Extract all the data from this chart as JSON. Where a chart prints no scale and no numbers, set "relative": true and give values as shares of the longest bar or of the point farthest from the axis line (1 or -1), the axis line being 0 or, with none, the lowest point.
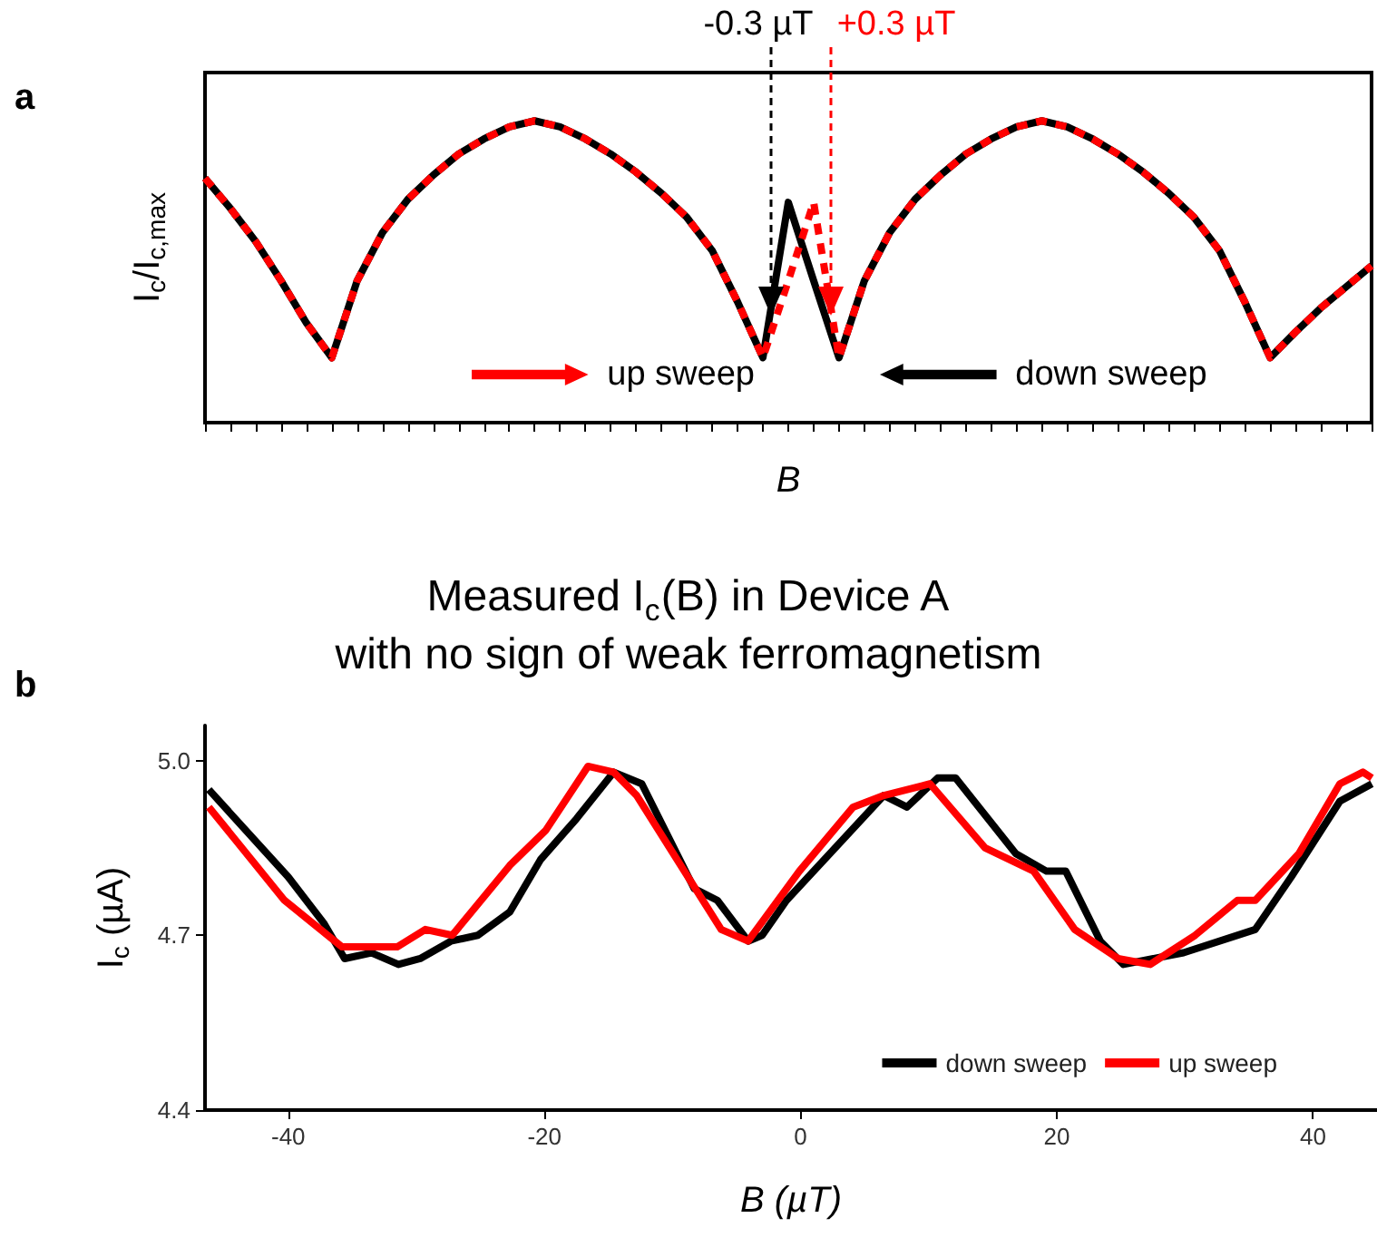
{
  "chart_data": [
    {
      "type": "line",
      "relative": true,
      "categories": [
        null,
        null,
        null,
        null,
        null,
        null,
        null,
        null,
        null,
        null,
        null,
        null,
        null,
        null,
        null,
        null,
        null,
        null,
        null,
        null,
        null,
        null,
        null,
        null,
        null,
        null,
        null,
        null,
        null,
        null,
        null,
        null,
        null,
        null,
        null,
        null,
        null,
        null,
        null,
        null,
        null,
        null,
        null,
        null,
        null,
        null,
        null
      ],
      "xlabel": "B",
      "ylabel": "I$_{c}$/I$_{c,max}$",
      "grid": false,
      "legend": "bottom",
      "marker": "none",
      "annotations": [
        "a",
        "-0.3 µT",
        "+0.3 µT"
      ],
      "series": [
        {
          "name": "down sweep",
          "color": "#000000",
          "line_style": "solid",
          "values": [
            0.81,
            0.71,
            0.6,
            0.47,
            0.33,
            0.215,
            0.47,
            0.63,
            0.74,
            0.82,
            0.89,
            0.94,
            0.98,
            1,
            0.98,
            0.94,
            0.89,
            0.83,
            0.76,
            0.68,
            0.57,
            0.4,
            0.215,
            0.73,
            0.47,
            0.215,
            0.47,
            0.63,
            0.74,
            0.82,
            0.89,
            0.94,
            0.98,
            1,
            0.98,
            0.94,
            0.89,
            0.83,
            0.76,
            0.68,
            0.57,
            0.4,
            0.215,
            0.3,
            0.38,
            0.45,
            0.52
          ]
        },
        {
          "name": "up sweep",
          "color": "#ff0000",
          "line_style": "dashed",
          "values": [
            0.81,
            0.71,
            0.6,
            0.47,
            0.33,
            0.215,
            0.47,
            0.63,
            0.74,
            0.82,
            0.89,
            0.94,
            0.98,
            1,
            0.98,
            0.94,
            0.89,
            0.83,
            0.76,
            0.68,
            0.57,
            0.4,
            0.215,
            0.47,
            0.73,
            0.215,
            0.47,
            0.63,
            0.74,
            0.82,
            0.89,
            0.94,
            0.98,
            1,
            0.98,
            0.94,
            0.89,
            0.83,
            0.76,
            0.68,
            0.57,
            0.4,
            0.215,
            0.3,
            0.38,
            0.45,
            0.52
          ]
        }
      ]
    },
    {
      "type": "line",
      "title": "Measured I$_{c}$(B) in Device A\nwith no sign of weak ferromagnetism",
      "xlabel": "B (µT)",
      "ylabel": "I$_{c}$ (µA)",
      "xlim": [
        -46.5,
        45
      ],
      "xticks": [
        -40,
        -20,
        0,
        20,
        40
      ],
      "ylim": [
        4.4,
        5.06
      ],
      "yticks": [
        {
          "value": 4.4,
          "label": "4.4"
        },
        {
          "value": 4.7,
          "label": "4.7"
        },
        {
          "value": 5,
          "label": "5.0"
        }
      ],
      "grid": false,
      "legend": "bottom right",
      "marker": "none",
      "line_style": "solid",
      "annotations": [
        "b"
      ],
      "series": [
        {
          "name": "down sweep",
          "color": "#000000",
          "x": [
            -46.2,
            -40,
            -37.2,
            -35.6,
            -33.5,
            -31.4,
            -29.7,
            -27.3,
            -25.2,
            -22.7,
            -20.3,
            -17.5,
            -14.6,
            -12.4,
            -8.3,
            -6.5,
            -4.1,
            -3.0,
            -1.1,
            6.5,
            8.3,
            10.7,
            12.1,
            16.8,
            19.2,
            20.7,
            23.4,
            25.2,
            29.9,
            35.5,
            38.3,
            42.1,
            44.6
          ],
          "values": [
            4.95,
            4.8,
            4.72,
            4.66,
            4.67,
            4.65,
            4.66,
            4.69,
            4.7,
            4.74,
            4.83,
            4.9,
            4.98,
            4.96,
            4.78,
            4.76,
            4.69,
            4.7,
            4.76,
            4.94,
            4.92,
            4.97,
            4.97,
            4.84,
            4.81,
            4.81,
            4.69,
            4.65,
            4.67,
            4.71,
            4.8,
            4.93,
            4.96
          ]
        },
        {
          "name": "up sweep",
          "color": "#ff0000",
          "x": [
            -46.2,
            -40.3,
            -35.8,
            -31.5,
            -29.3,
            -27.2,
            -22.7,
            -19.9,
            -16.6,
            -14.6,
            -12.8,
            -6.2,
            -4.1,
            -0.1,
            4.1,
            6.5,
            10.1,
            14.4,
            18.2,
            21.4,
            24.8,
            27.3,
            30.8,
            34.1,
            35.5,
            38.9,
            42.1,
            43.9,
            44.6
          ],
          "values": [
            4.92,
            4.76,
            4.68,
            4.68,
            4.71,
            4.7,
            4.82,
            4.88,
            4.99,
            4.98,
            4.94,
            4.71,
            4.69,
            4.81,
            4.92,
            4.94,
            4.96,
            4.85,
            4.81,
            4.71,
            4.66,
            4.65,
            4.7,
            4.76,
            4.76,
            4.84,
            4.96,
            4.98,
            4.97
          ]
        }
      ]
    }
  ]
}
